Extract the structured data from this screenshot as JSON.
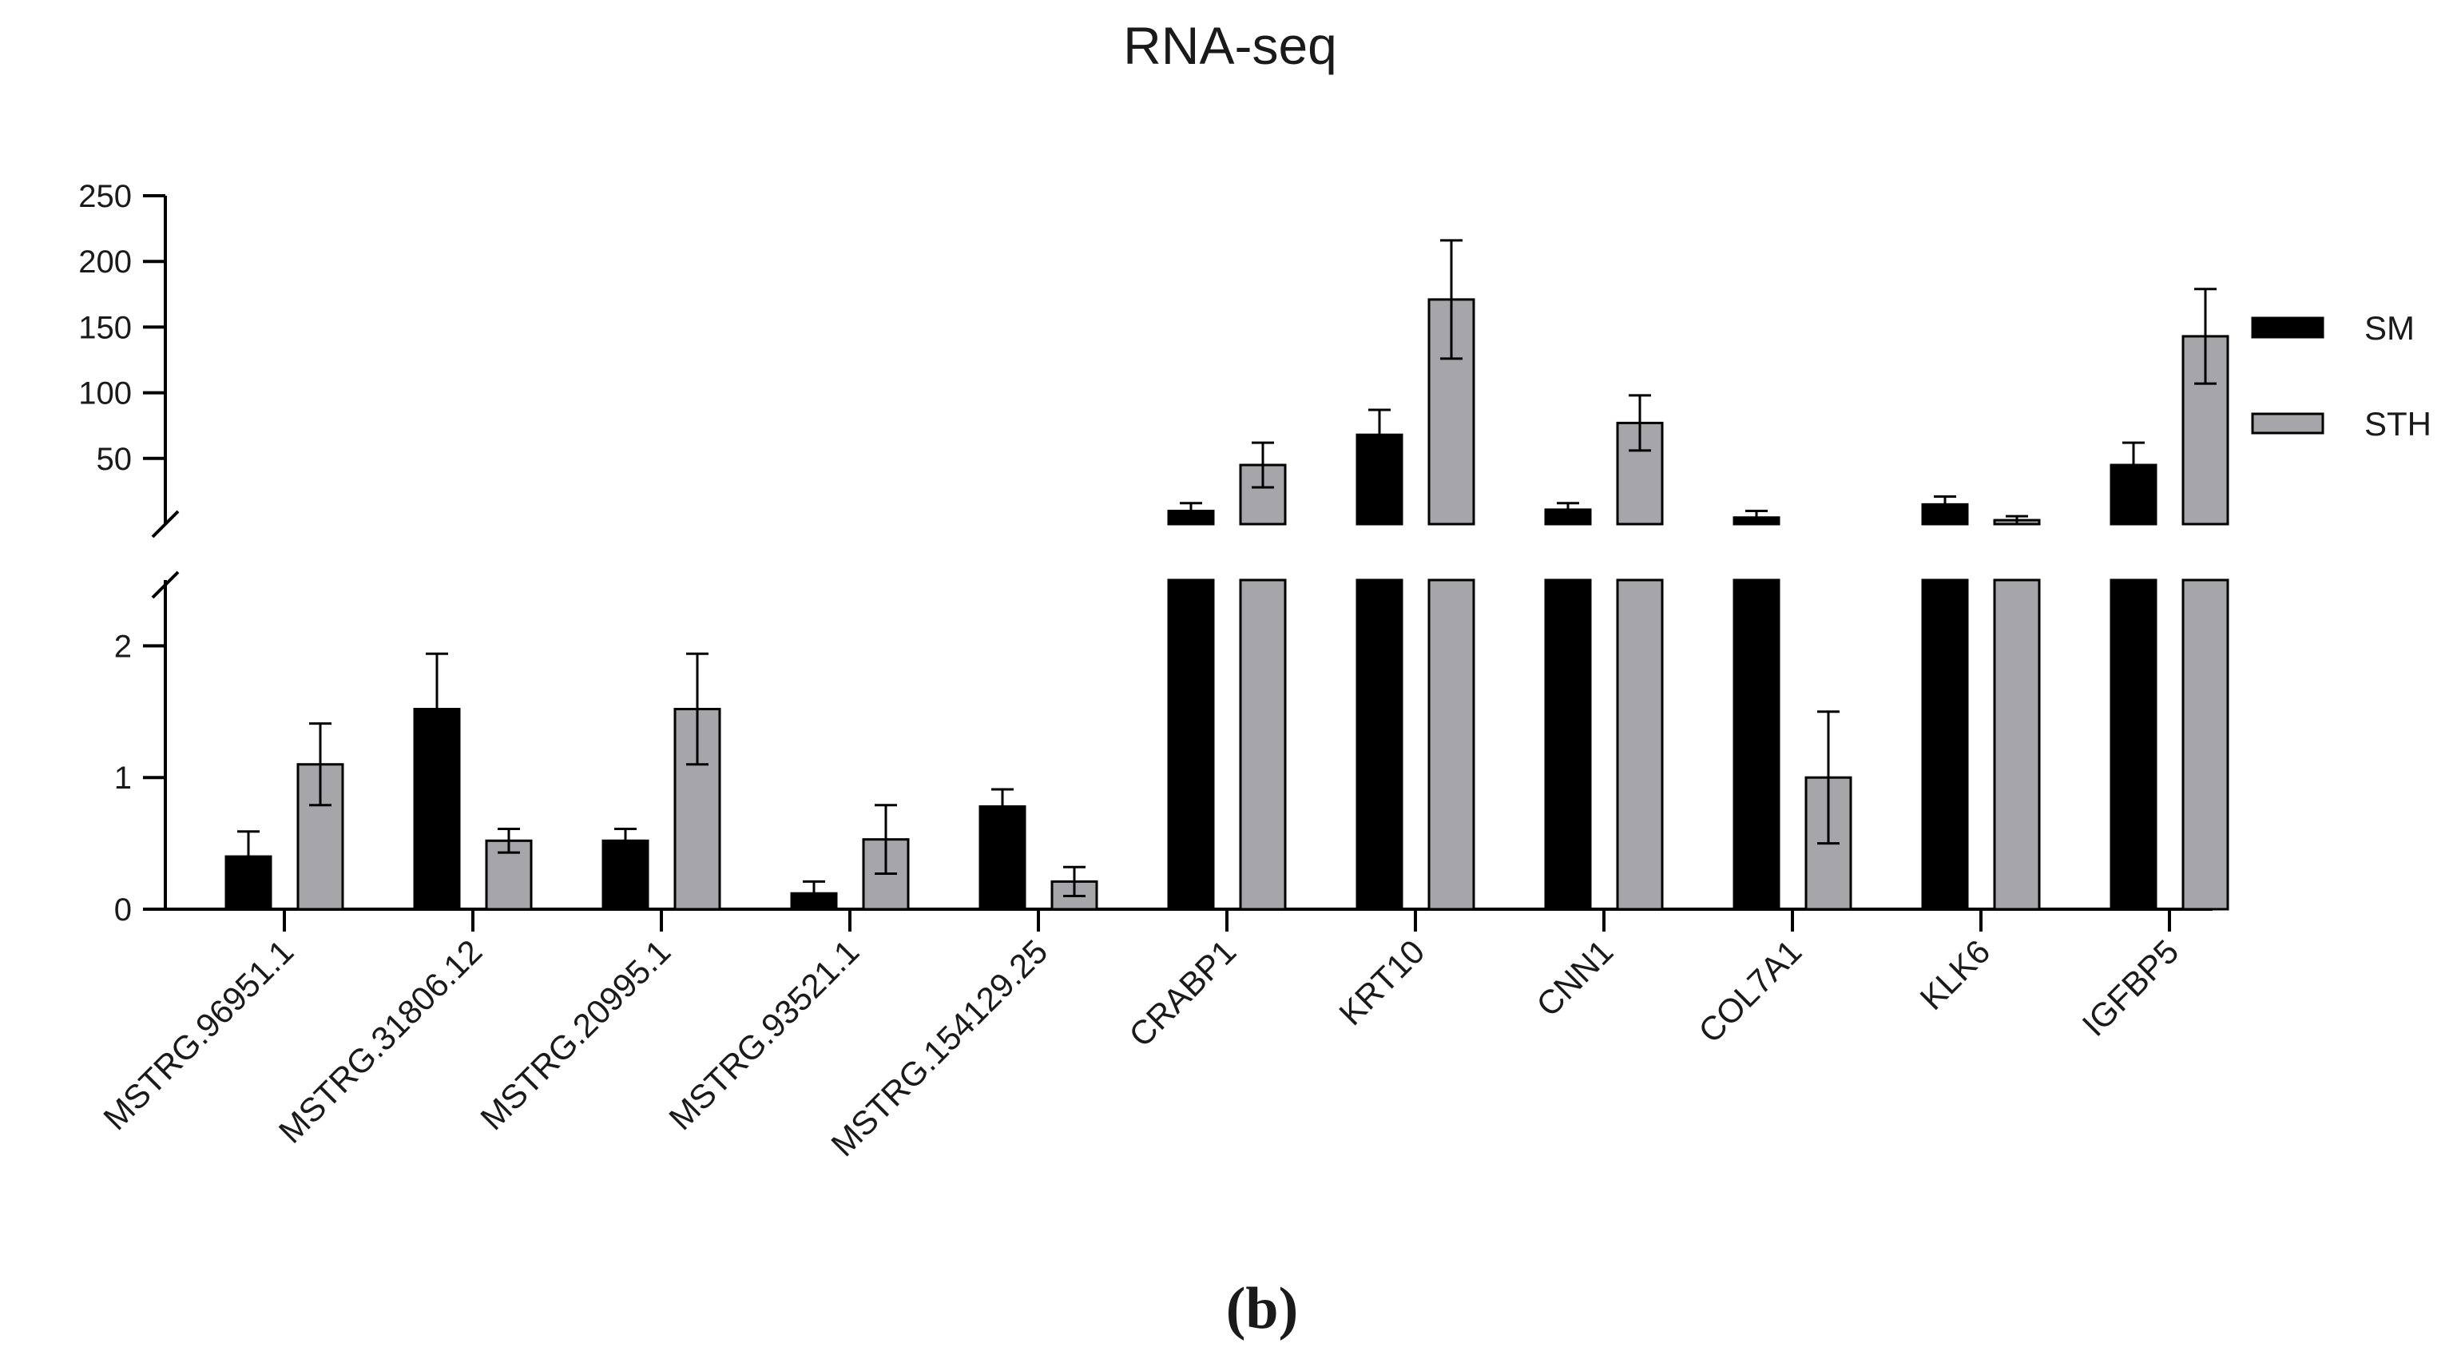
{
  "chart_data": {
    "type": "bar",
    "title": "RNA-seq",
    "panel_label": "(b)",
    "xlabel": "",
    "ylabel": "",
    "y_axis_break": true,
    "lower_ylim": [
      0,
      2.5
    ],
    "lower_yticks": [
      "0",
      "1",
      "2"
    ],
    "upper_ylim": [
      0,
      250
    ],
    "upper_yticks": [
      "50",
      "100",
      "150",
      "200",
      "250"
    ],
    "categories": [
      "MSTRG.96951.1",
      "MSTRG.31806.12",
      "MSTRG.20995.1",
      "MSTRG.93521.1",
      "MSTRG.154129.25",
      "CRABP1",
      "KRT10",
      "CNN1",
      "COL7A1",
      "KLK6",
      "IGFBP5"
    ],
    "series": [
      {
        "name": "SM",
        "color": "#000000",
        "values": [
          0.4,
          1.52,
          0.52,
          0.12,
          0.78,
          10,
          68,
          11,
          5,
          15,
          45
        ],
        "errors": [
          0.19,
          0.42,
          0.09,
          0.09,
          0.13,
          6,
          19,
          5,
          5,
          6,
          17
        ]
      },
      {
        "name": "STH",
        "color": "#a5a5aa",
        "values": [
          1.1,
          0.52,
          1.52,
          0.53,
          0.21,
          45,
          171,
          77,
          1,
          3,
          143
        ],
        "errors": [
          0.31,
          0.09,
          0.42,
          0.26,
          0.11,
          17,
          45,
          21,
          0.5,
          3,
          36
        ]
      }
    ],
    "legend_position": "right"
  }
}
